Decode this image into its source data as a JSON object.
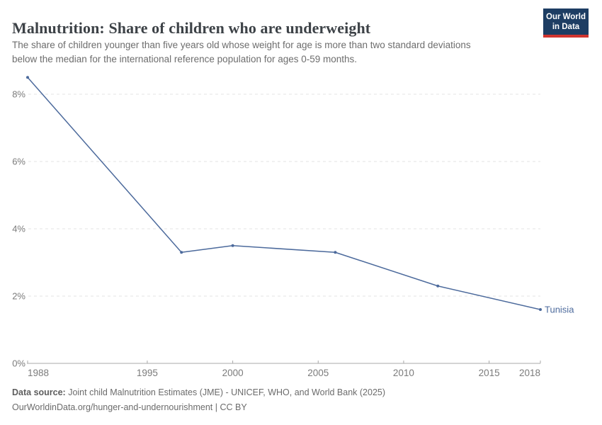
{
  "chart_data": {
    "type": "line",
    "title": "Malnutrition: Share of children who are underweight",
    "subtitle_lines": [
      "The share of children younger than five years old whose weight for age is more than two standard deviations",
      "below the median for the international reference population for ages 0-59 months."
    ],
    "x": [
      1988,
      1997,
      2000,
      2006,
      2012,
      2018
    ],
    "series": [
      {
        "name": "Tunisia",
        "color": "#4c6a9c",
        "values": [
          8.5,
          3.3,
          3.5,
          3.3,
          2.3,
          1.6
        ]
      }
    ],
    "xlabel": "",
    "ylabel": "",
    "xlim": [
      1988,
      2018
    ],
    "ylim": [
      0,
      8.7
    ],
    "x_ticks": [
      1988,
      1995,
      2000,
      2005,
      2010,
      2015,
      2018
    ],
    "x_tick_labels": [
      "1988",
      "1995",
      "2000",
      "2005",
      "2010",
      "2015",
      "2018"
    ],
    "y_ticks": [
      0,
      2,
      4,
      6,
      8
    ],
    "y_tick_labels": [
      "0%",
      "2%",
      "4%",
      "6%",
      "8%"
    ],
    "grid": "horizontal-dashed",
    "legend": "end-of-line-label",
    "entity_label": "Tunisia"
  },
  "logo": {
    "line1": "Our World",
    "line2": "in Data"
  },
  "footer": {
    "source_label": "Data source:",
    "source_text": " Joint child Malnutrition Estimates (JME) - UNICEF, WHO, and World Bank (2025)",
    "url_text": "OurWorldinData.org/hunger-and-undernourishment",
    "license_text": " | CC BY"
  },
  "colors": {
    "line": "#4c6a9c",
    "grid": "#e3e3e3",
    "axis": "#a8a8a8",
    "tick_label": "#7b7b7b",
    "title": "#3d4247",
    "subtitle": "#6d6d6d",
    "footer": "#6b6b6b",
    "logo_bg": "#1d3d63",
    "logo_accent": "#d0342f"
  }
}
